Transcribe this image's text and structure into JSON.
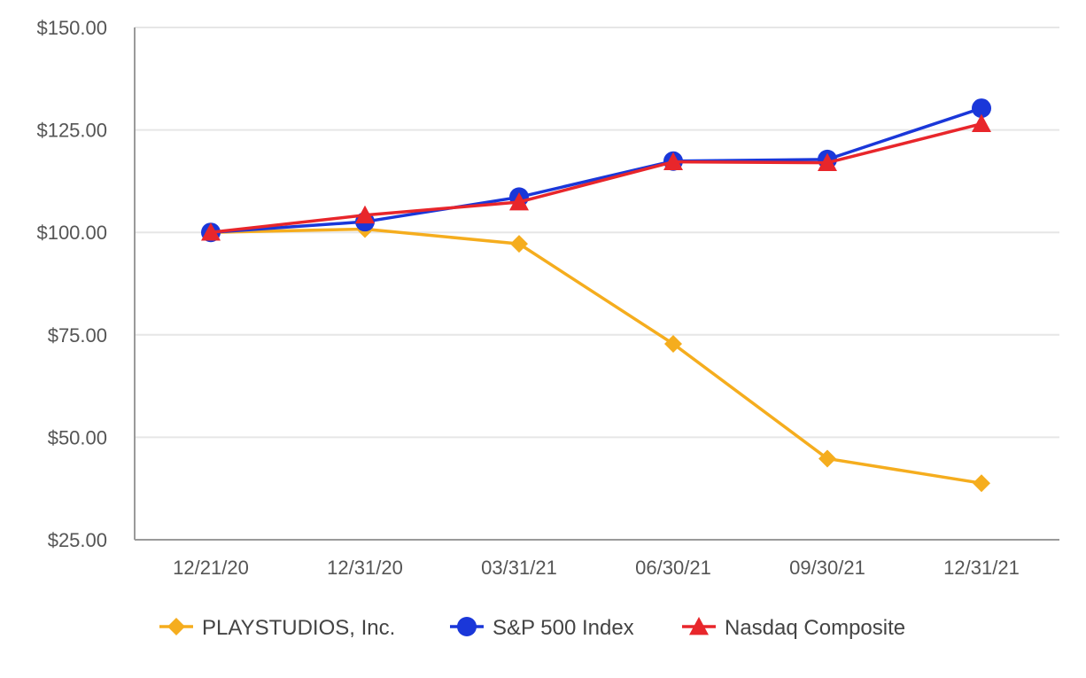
{
  "chart_data": {
    "type": "line",
    "title": "",
    "xlabel": "",
    "ylabel": "",
    "categories": [
      "12/21/20",
      "12/31/20",
      "03/31/21",
      "06/30/21",
      "09/30/21",
      "12/31/21"
    ],
    "ylim": [
      25,
      150
    ],
    "yticks": [
      25,
      50,
      75,
      100,
      125,
      150
    ],
    "ytick_labels": [
      "$25.00",
      "$50.00",
      "$75.00",
      "$100.00",
      "$125.00",
      "$150.00"
    ],
    "grid": true,
    "legend_position": "bottom",
    "series": [
      {
        "name": "PLAYSTUDIOS, Inc.",
        "marker": "diamond",
        "color": "#F5AD1E",
        "values": [
          100.0,
          100.8,
          97.2,
          72.8,
          44.8,
          38.8
        ]
      },
      {
        "name": "S&P 500 Index",
        "marker": "circle",
        "color": "#1A37D9",
        "values": [
          100.0,
          102.6,
          108.6,
          117.4,
          117.8,
          130.3
        ]
      },
      {
        "name": "Nasdaq Composite",
        "marker": "triangle",
        "color": "#E8262B",
        "values": [
          100.0,
          104.2,
          107.4,
          117.2,
          117.0,
          126.5
        ]
      }
    ]
  }
}
